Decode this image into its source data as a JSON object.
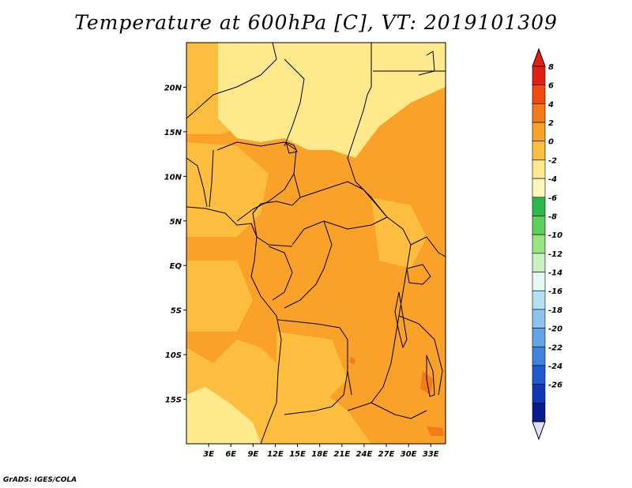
{
  "title": "Temperature at 600hPa [C], VT: 2019101309",
  "credit": "GrADS: IGES/COLA",
  "map": {
    "lon_range": [
      0,
      35
    ],
    "lat_range": [
      -20,
      25
    ],
    "lat_ticks": [
      "20N",
      "15N",
      "10N",
      "5N",
      "EQ",
      "5S",
      "10S",
      "15S"
    ],
    "lon_ticks": [
      "3E",
      "6E",
      "9E",
      "12E",
      "15E",
      "18E",
      "21E",
      "24E",
      "27E",
      "30E",
      "33E"
    ],
    "fill_colors": {
      "light_yellow": "#fee98c",
      "orange_light": "#fdbd3f",
      "orange": "#f9a128",
      "orange_dark": "#f57a1a"
    }
  },
  "colorbar": {
    "labels": [
      "8",
      "6",
      "4",
      "2",
      "0",
      "-2",
      "-4",
      "-6",
      "-8",
      "-10",
      "-12",
      "-14",
      "-16",
      "-18",
      "-20",
      "-22",
      "-24",
      "-26"
    ],
    "colors": [
      "#e02010",
      "#f24a0e",
      "#f57a1a",
      "#f9a128",
      "#fdbd3f",
      "#fee98c",
      "#fff8b8",
      "#2cb84a",
      "#5cd05a",
      "#96e482",
      "#c8f2c0",
      "#e6f8f2",
      "#b4e0f4",
      "#8cc4ee",
      "#64a4e6",
      "#3c84dc",
      "#1e5cce",
      "#1038b4",
      "#081c8c"
    ],
    "top_triangle_color": "#e02010",
    "bottom_triangle_color": "#e0e0f8"
  }
}
